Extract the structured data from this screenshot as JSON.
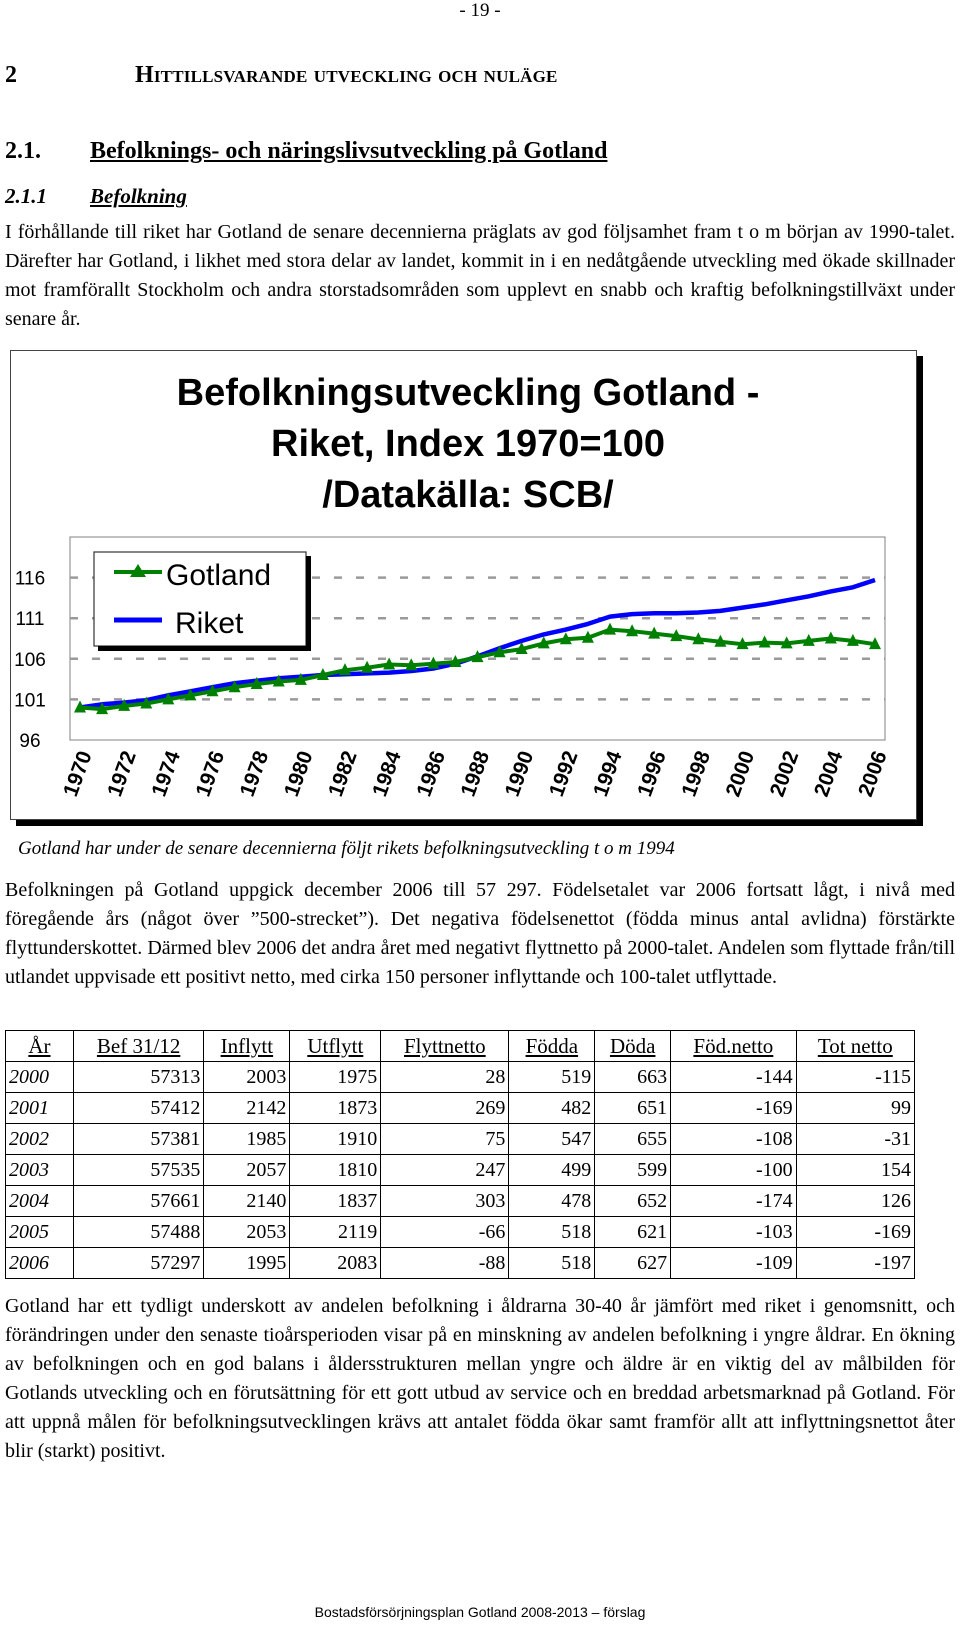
{
  "page_number": "- 19 -",
  "heading1": {
    "number": "2",
    "title": "Hittillsvarande utveckling och nuläge"
  },
  "heading2": {
    "number": "2.1.",
    "title": "Befolknings- och näringslivsutveckling på Gotland"
  },
  "heading3": {
    "number": "2.1.1",
    "title": "Befolkning"
  },
  "paragraph1": "I förhållande till riket har Gotland de senare decennierna präglats av god följsamhet fram t o m början av 1990-talet. Därefter har Gotland, i likhet med stora delar av landet, kommit in i en nedåtgående utveckling med ökade skillnader mot framförallt Stockholm och andra storstadsområden som upplevt en snabb och kraftig befolkningstillväxt under senare år.",
  "chart_data": {
    "type": "line",
    "title_lines": [
      "Befolkningsutveckling Gotland -",
      "Riket, Index 1970=100",
      "/Datakälla: SCB/"
    ],
    "x": [
      1970,
      1971,
      1972,
      1973,
      1974,
      1975,
      1976,
      1977,
      1978,
      1979,
      1980,
      1981,
      1982,
      1983,
      1984,
      1985,
      1986,
      1987,
      1988,
      1989,
      1990,
      1991,
      1992,
      1993,
      1994,
      1995,
      1996,
      1997,
      1998,
      1999,
      2000,
      2001,
      2002,
      2003,
      2004,
      2005,
      2006
    ],
    "x_tick_labels": [
      "1970",
      "1972",
      "1974",
      "1976",
      "1978",
      "1980",
      "1982",
      "1984",
      "1986",
      "1988",
      "1990",
      "1992",
      "1994",
      "1996",
      "1998",
      "2000",
      "2002",
      "2004",
      "2006"
    ],
    "y_tick_labels": [
      "96",
      "101",
      "106",
      "111",
      "116"
    ],
    "ylim": [
      96,
      121
    ],
    "series": [
      {
        "name": "Gotland",
        "color": "#008000",
        "marker": "triangle",
        "values": [
          100.0,
          99.8,
          100.2,
          100.5,
          101.0,
          101.5,
          102.0,
          102.5,
          102.9,
          103.2,
          103.4,
          104.0,
          104.6,
          104.9,
          105.3,
          105.2,
          105.4,
          105.6,
          106.2,
          106.8,
          107.2,
          107.9,
          108.4,
          108.6,
          109.6,
          109.4,
          109.1,
          108.8,
          108.4,
          108.1,
          107.8,
          108.0,
          107.9,
          108.2,
          108.5,
          108.2,
          107.8
        ]
      },
      {
        "name": "Riket",
        "color": "#0000ff",
        "marker": "none",
        "values": [
          100.0,
          100.4,
          100.6,
          100.9,
          101.5,
          102.0,
          102.5,
          103.0,
          103.3,
          103.6,
          103.8,
          104.0,
          104.1,
          104.2,
          104.3,
          104.5,
          104.8,
          105.4,
          106.3,
          107.3,
          108.2,
          109.0,
          109.6,
          110.3,
          111.2,
          111.5,
          111.6,
          111.6,
          111.7,
          111.9,
          112.3,
          112.7,
          113.2,
          113.7,
          114.3,
          114.8,
          115.7
        ]
      }
    ],
    "legend_position": "top-left",
    "grid": true
  },
  "chart_caption": "Gotland har under de senare decennierna följt rikets befolkningsutveckling t o m 1994",
  "paragraph2": "Befolkningen på Gotland uppgick december 2006 till 57 297. Födelsetalet var 2006 fortsatt lågt, i nivå med föregående års (något över ”500-strecket”). Det negativa födelsenettot (födda minus antal avlidna) förstärkte flyttunderskottet. Därmed blev 2006 det andra året med negativt flyttnetto på 2000-talet. Andelen som flyttade från/till utlandet uppvisade ett positivt netto, med cirka 150 personer inflyttande och 100-talet utflyttade.",
  "table": {
    "headers": [
      "År",
      "Bef 31/12",
      "Inflytt",
      "Utflytt",
      "Flyttnetto",
      "Födda",
      "Döda",
      "Föd.netto",
      "Tot netto"
    ],
    "rows": [
      [
        "2000",
        "57313",
        "2003",
        "1975",
        "28",
        "519",
        "663",
        "-144",
        "-115"
      ],
      [
        "2001",
        "57412",
        "2142",
        "1873",
        "269",
        "482",
        "651",
        "-169",
        "99"
      ],
      [
        "2002",
        "57381",
        "1985",
        "1910",
        "75",
        "547",
        "655",
        "-108",
        "-31"
      ],
      [
        "2003",
        "57535",
        "2057",
        "1810",
        "247",
        "499",
        "599",
        "-100",
        "154"
      ],
      [
        "2004",
        "57661",
        "2140",
        "1837",
        "303",
        "478",
        "652",
        "-174",
        "126"
      ],
      [
        "2005",
        "57488",
        "2053",
        "2119",
        "-66",
        "518",
        "621",
        "-103",
        "-169"
      ],
      [
        "2006",
        "57297",
        "1995",
        "2083",
        "-88",
        "518",
        "627",
        "-109",
        "-197"
      ]
    ]
  },
  "paragraph3": "Gotland har ett tydligt underskott av andelen befolkning i åldrarna 30-40 år jämfört med riket i genomsnitt, och förändringen under den senaste tioårsperioden visar på en minskning av andelen befolkning i yngre åldrar. En ökning av befolkningen och en god balans i åldersstrukturen mellan yngre och äldre är en viktig del av målbilden för Gotlands utveckling och en förutsättning för ett gott utbud av service och en breddad arbetsmarknad på Gotland. För att uppnå målen för befolkningsutvecklingen krävs att antalet födda ökar samt framför allt att inflyttningsnettot åter blir (starkt) positivt.",
  "footer": "Bostadsförsörjningsplan Gotland 2008-2013 – förslag"
}
